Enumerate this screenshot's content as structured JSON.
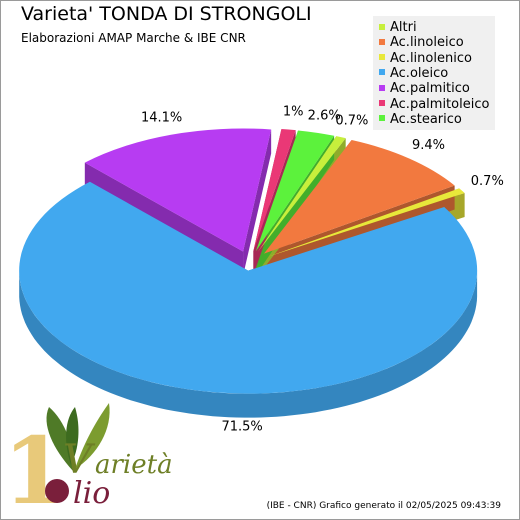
{
  "title": "Varieta' TONDA DI STRONGOLI",
  "subtitle": "Elaborazioni AMAP Marche & IBE CNR",
  "footer": "(IBE - CNR) Grafico generato il 02/05/2025 09:43:39",
  "logo": {
    "word1": "arietà",
    "word2": "lio"
  },
  "chart_data": {
    "type": "pie",
    "title": "Varieta' TONDA DI STRONGOLI",
    "labels": [
      "Altri",
      "Ac.linoleico",
      "Ac.linolenico",
      "Ac.oleico",
      "Ac.palmitico",
      "Ac.palmitoleico",
      "Ac.stearico"
    ],
    "values": [
      0.7,
      9.4,
      0.7,
      71.5,
      14.1,
      1,
      2.6
    ],
    "value_labels": [
      "0.7%",
      "9.4%",
      "0.7%",
      "71.5%",
      "14.1%",
      "1%",
      "2.6%"
    ],
    "colors": [
      "#c7ef3c",
      "#f2793f",
      "#e8e83a",
      "#41a8ef",
      "#b73cf2",
      "#ea3876",
      "#5cf23c"
    ],
    "legend_position": "top-right",
    "style": "3d exploded"
  }
}
